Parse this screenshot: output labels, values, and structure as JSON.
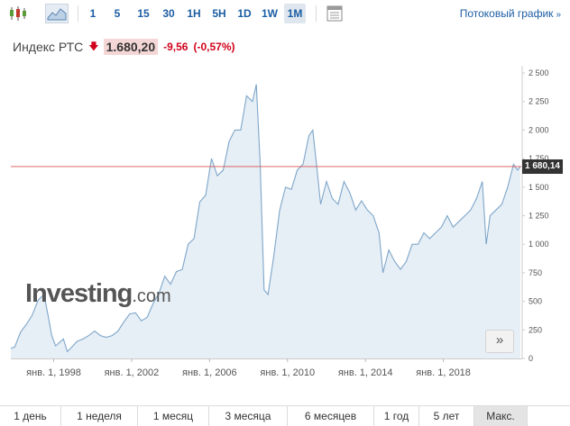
{
  "toolbar": {
    "icons": [
      "candlestick-icon",
      "area-chart-icon",
      "table-view-icon"
    ],
    "intervals": [
      {
        "label": "1"
      },
      {
        "label": "5"
      },
      {
        "label": "15"
      },
      {
        "label": "30"
      },
      {
        "label": "1H"
      },
      {
        "label": "5H"
      },
      {
        "label": "1D"
      },
      {
        "label": "1W"
      },
      {
        "label": "1M"
      }
    ],
    "active_interval": "1M",
    "streaming_label": "Потоковый график"
  },
  "instrument": {
    "name": "Индекс РТС",
    "price": "1.680,20",
    "change": "-9,56",
    "change_pct": "(-0,57%)",
    "direction": "down",
    "color_down": "#d0021b"
  },
  "chart_data": {
    "type": "area",
    "x_unit": "year",
    "x": [
      1995.8,
      1996.0,
      1996.3,
      1996.6,
      1996.9,
      1997.2,
      1997.5,
      1997.7,
      1997.9,
      1998.1,
      1998.3,
      1998.5,
      1998.7,
      1998.9,
      1999.2,
      1999.5,
      1999.8,
      2000.1,
      2000.4,
      2000.7,
      2001.0,
      2001.3,
      2001.6,
      2001.9,
      2002.2,
      2002.5,
      2002.8,
      2003.1,
      2003.4,
      2003.7,
      2004.0,
      2004.3,
      2004.6,
      2004.9,
      2005.2,
      2005.5,
      2005.8,
      2006.1,
      2006.4,
      2006.7,
      2007.0,
      2007.3,
      2007.6,
      2007.9,
      2008.2,
      2008.4,
      2008.6,
      2008.8,
      2009.0,
      2009.3,
      2009.6,
      2009.9,
      2010.2,
      2010.5,
      2010.8,
      2011.1,
      2011.3,
      2011.5,
      2011.7,
      2012.0,
      2012.3,
      2012.6,
      2012.9,
      2013.2,
      2013.5,
      2013.8,
      2014.1,
      2014.4,
      2014.7,
      2014.9,
      2015.2,
      2015.5,
      2015.8,
      2016.1,
      2016.4,
      2016.7,
      2017.0,
      2017.3,
      2017.6,
      2017.9,
      2018.2,
      2018.5,
      2018.8,
      2019.1,
      2019.4,
      2019.7,
      2020.0,
      2020.2,
      2020.4,
      2020.7,
      2021.0,
      2021.3,
      2021.6,
      2021.8,
      2021.95
    ],
    "y": [
      90,
      100,
      230,
      300,
      380,
      510,
      560,
      390,
      200,
      110,
      140,
      170,
      60,
      95,
      150,
      170,
      200,
      240,
      200,
      185,
      200,
      240,
      320,
      390,
      400,
      330,
      360,
      480,
      570,
      720,
      650,
      760,
      780,
      1000,
      1050,
      1370,
      1430,
      1750,
      1600,
      1650,
      1900,
      2000,
      2000,
      2300,
      2250,
      2400,
      1700,
      600,
      560,
      900,
      1300,
      1500,
      1480,
      1650,
      1700,
      1950,
      2000,
      1680,
      1350,
      1550,
      1400,
      1350,
      1550,
      1450,
      1300,
      1380,
      1300,
      1250,
      1100,
      750,
      950,
      850,
      780,
      850,
      1000,
      1000,
      1100,
      1050,
      1100,
      1150,
      1250,
      1150,
      1200,
      1250,
      1300,
      1400,
      1550,
      1000,
      1250,
      1300,
      1350,
      1500,
      1700,
      1650,
      1680
    ],
    "ylim": [
      0,
      2500
    ],
    "yticks": [
      "0",
      "250",
      "500",
      "750",
      "1 000",
      "1 250",
      "1 500",
      "1 750",
      "2 000",
      "2 250",
      "2 500"
    ],
    "xticks": [
      "янв. 1, 1998",
      "янв. 1, 2002",
      "янв. 1, 2006",
      "янв. 1, 2010",
      "янв. 1, 2014",
      "янв. 1, 2018"
    ],
    "xtick_values": [
      1998,
      2002,
      2006,
      2010,
      2014,
      2018
    ],
    "last_value": 1680.14,
    "last_value_label": "1 680,14",
    "line_color": "#7ea6c9",
    "fill_color": "#e6eef6",
    "price_line_color": "#d9534f",
    "grid": false,
    "xlabel": "",
    "ylabel": ""
  },
  "watermark": {
    "brand": "Investing",
    "suffix": ".com"
  },
  "expand_label": "»",
  "ranges": [
    {
      "label": "1 день"
    },
    {
      "label": "1 неделя"
    },
    {
      "label": "1 месяц"
    },
    {
      "label": "3 месяца"
    },
    {
      "label": "6 месяцев"
    },
    {
      "label": "1 год"
    },
    {
      "label": "5 лет"
    },
    {
      "label": "Макс."
    }
  ],
  "active_range": "Макс."
}
